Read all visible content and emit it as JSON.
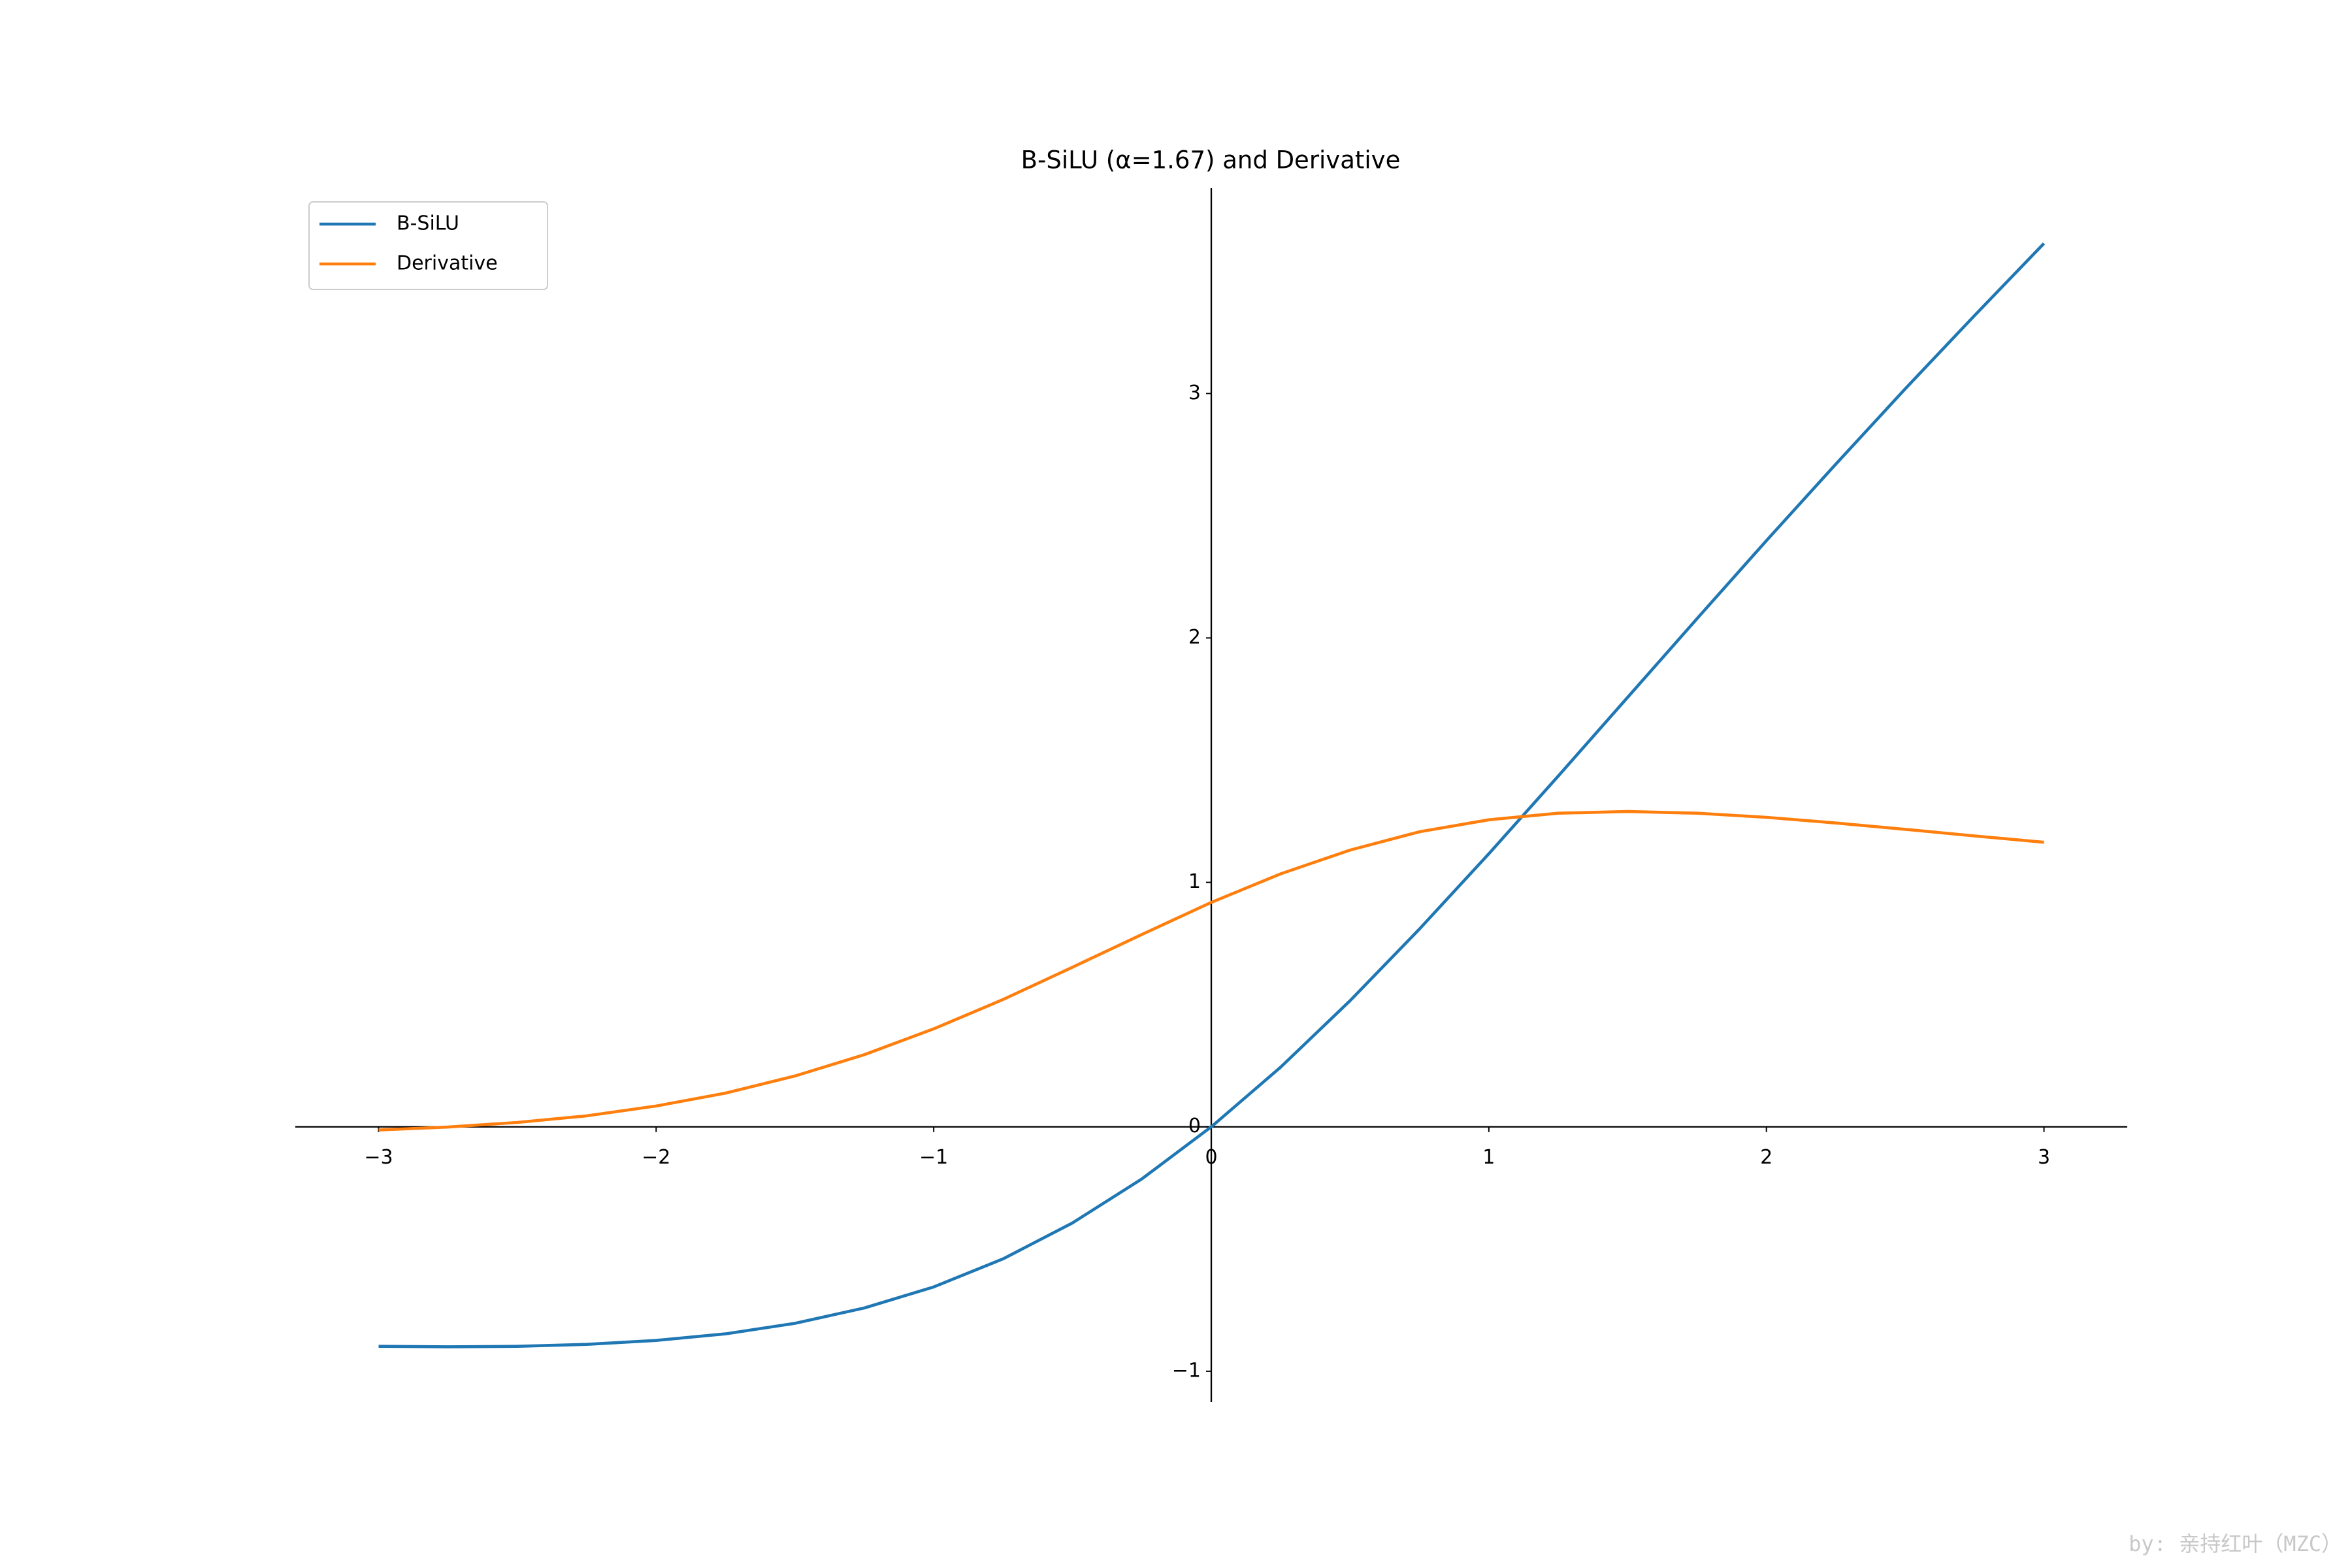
{
  "chart_data": {
    "type": "line",
    "title": "B-SiLU (α=1.67) and Derivative",
    "x": [
      -3,
      -2.75,
      -2.5,
      -2.25,
      -2,
      -1.75,
      -1.5,
      -1.25,
      -1,
      -0.75,
      -0.5,
      -0.25,
      0,
      0.25,
      0.5,
      0.75,
      1,
      1.25,
      1.5,
      1.75,
      2,
      2.25,
      2.5,
      2.75,
      3
    ],
    "series": [
      {
        "name": "B-SiLU",
        "color": "#1f77b4",
        "values": [
          -0.898,
          -0.9,
          -0.898,
          -0.89,
          -0.874,
          -0.847,
          -0.804,
          -0.741,
          -0.655,
          -0.54,
          -0.393,
          -0.213,
          0,
          0.244,
          0.516,
          0.809,
          1.117,
          1.435,
          1.757,
          2.079,
          2.398,
          2.711,
          3.019,
          3.319,
          3.614
        ]
      },
      {
        "name": "Derivative",
        "color": "#ff7f0e",
        "values": [
          -0.013,
          -0.001,
          0.018,
          0.045,
          0.085,
          0.138,
          0.208,
          0.295,
          0.401,
          0.521,
          0.653,
          0.787,
          0.918,
          1.035,
          1.132,
          1.207,
          1.256,
          1.283,
          1.29,
          1.283,
          1.266,
          1.243,
          1.217,
          1.19,
          1.164
        ]
      }
    ],
    "xlim": [
      -3.3,
      3.3
    ],
    "ylim": [
      -1.126,
      3.84
    ],
    "xticks": [
      {
        "value": -3,
        "label": "−3"
      },
      {
        "value": -2,
        "label": "−2"
      },
      {
        "value": -1,
        "label": "−1"
      },
      0,
      1,
      2,
      3
    ],
    "yticks": [
      {
        "value": -1,
        "label": "−1"
      },
      0,
      1,
      2,
      3
    ],
    "legend": "upper left",
    "watermark": "by: 亲持红叶（MZC）"
  }
}
